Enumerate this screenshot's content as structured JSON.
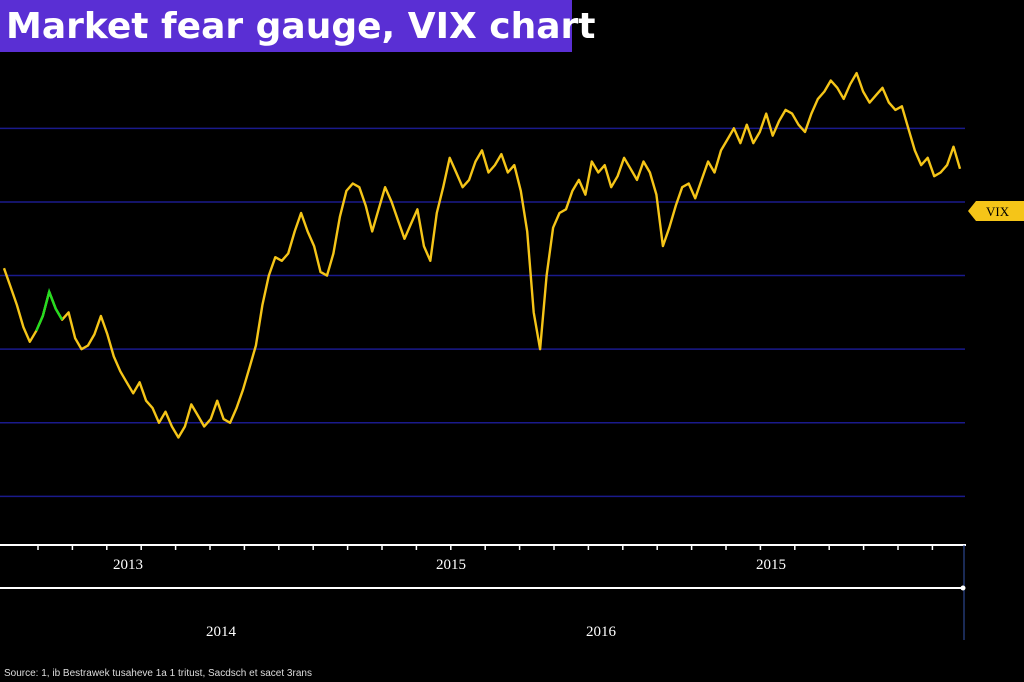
{
  "title": "Market fear gauge, VIX chart",
  "source_note": "Source: 1, ib Bestrawek tusaheve 1a 1 tritust, Sacdsch et sacet 3rans",
  "colors": {
    "background": "#000000",
    "title_bar": "#5a2fd4",
    "line": "#f5c518",
    "highlight": "#22dd22",
    "gridline": "#1a1a8c",
    "axis": "#ffffff"
  },
  "chart_data": {
    "type": "line",
    "title": "Market fear gauge, VIX chart",
    "series": [
      {
        "name": "VIX",
        "values": [
          41.0,
          38.5,
          36.0,
          33.0,
          31.0,
          32.5,
          34.5,
          37.8,
          35.5,
          34.0,
          35.0,
          31.5,
          30.0,
          30.5,
          32.0,
          34.5,
          32.0,
          29.0,
          27.0,
          25.5,
          24.0,
          25.5,
          23.0,
          22.0,
          20.0,
          21.5,
          19.5,
          18.0,
          19.5,
          22.5,
          21.0,
          19.5,
          20.5,
          23.0,
          20.5,
          20.0,
          22.0,
          24.5,
          27.5,
          30.5,
          36.0,
          40.0,
          42.5,
          42.0,
          43.0,
          46.0,
          48.5,
          46.0,
          44.0,
          40.5,
          40.0,
          43.0,
          48.0,
          51.5,
          52.5,
          52.0,
          49.5,
          46.0,
          49.0,
          52.0,
          50.0,
          47.5,
          45.0,
          47.0,
          49.0,
          44.0,
          42.0,
          48.5,
          52.0,
          56.0,
          54.0,
          52.0,
          53.0,
          55.5,
          57.0,
          54.0,
          55.0,
          56.5,
          54.0,
          55.0,
          51.5,
          46.0,
          35.0,
          30.0,
          40.0,
          46.5,
          48.5,
          49.0,
          51.5,
          53.0,
          51.0,
          55.5,
          54.0,
          55.0,
          52.0,
          53.5,
          56.0,
          54.5,
          53.0,
          55.5,
          54.0,
          51.0,
          44.0,
          46.5,
          49.5,
          52.0,
          52.5,
          50.5,
          53.0,
          55.5,
          54.0,
          57.0,
          58.5,
          60.0,
          58.0,
          60.5,
          58.0,
          59.5,
          62.0,
          59.0,
          61.0,
          62.5,
          62.0,
          60.5,
          59.5,
          62.0,
          64.0,
          65.0,
          66.5,
          65.5,
          64.0,
          66.0,
          67.5,
          65.0,
          63.5,
          64.5,
          65.5,
          63.5,
          62.5,
          63.0,
          60.0,
          57.0,
          55.0,
          56.0,
          53.5,
          54.0,
          55.0,
          57.5,
          54.5
        ],
        "color": "#f5c518"
      }
    ],
    "x_tick_labels_row1": [
      "2013",
      "2015",
      "2015"
    ],
    "x_tick_labels_row2": [
      "2014",
      "2016"
    ],
    "series_label": "VIX",
    "ylim": [
      0,
      72
    ],
    "grid": true,
    "legend": "right-end tag"
  }
}
